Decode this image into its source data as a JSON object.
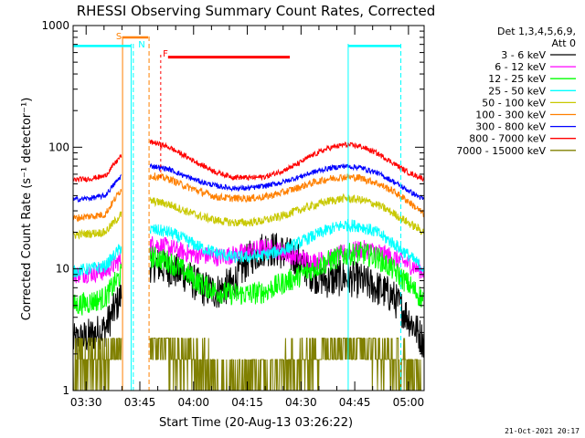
{
  "chart_data": {
    "type": "line",
    "title": "RHESSI Observing Summary Count Rates, Corrected",
    "xlabel": "Start Time (20-Aug-13 03:26:22)",
    "ylabel": "Corrected Count Rate (s⁻¹ detector⁻¹)",
    "yscale": "log",
    "ylim": [
      1,
      1000
    ],
    "xlim_minutes": [
      0,
      98
    ],
    "x_tick_labels": [
      "03:30",
      "03:45",
      "04:00",
      "04:15",
      "04:30",
      "04:45",
      "05:00"
    ],
    "x_tick_minutes": [
      3.63,
      18.63,
      33.63,
      48.63,
      63.63,
      78.63,
      93.63
    ],
    "y_tick_labels": [
      "1",
      "10",
      "100",
      "1000"
    ],
    "y_tick_values": [
      1,
      10,
      100,
      1000
    ],
    "legend_title": [
      "Det 1,3,4,5,6,9,",
      "Att 0"
    ],
    "series": [
      {
        "name": "3 - 6 keV",
        "color": "#000000",
        "values": [
          2.5,
          2.8,
          3.2,
          6,
          10,
          11,
          10,
          9,
          7,
          6.5,
          7.5,
          12,
          15,
          14,
          12,
          9,
          8,
          8.5,
          8,
          7,
          6,
          4,
          2.5
        ]
      },
      {
        "name": "6 - 12 keV",
        "color": "#ff00ff",
        "values": [
          9,
          9.2,
          9.5,
          12,
          15,
          16,
          15,
          13.5,
          13,
          12.5,
          13,
          14,
          15,
          14,
          12.5,
          11.5,
          12,
          13.5,
          14.5,
          14,
          12.5,
          11,
          9.5
        ]
      },
      {
        "name": "12 - 25 keV",
        "color": "#00ff00",
        "values": [
          5,
          5.3,
          5.8,
          9,
          11.5,
          12.5,
          11.5,
          9.5,
          7.5,
          6.5,
          6.2,
          6.2,
          6.5,
          7.5,
          8.5,
          10,
          11.5,
          13,
          13.5,
          12.5,
          10,
          7.5,
          5.5
        ]
      },
      {
        "name": "25 - 50 keV",
        "color": "#00ffff",
        "values": [
          9.5,
          10,
          10.5,
          15,
          19,
          21,
          20,
          17.5,
          15,
          13.5,
          12.5,
          12.5,
          13,
          14,
          16,
          18.5,
          21,
          23,
          22.5,
          20,
          16.5,
          13,
          10
        ]
      },
      {
        "name": "50 - 100 keV",
        "color": "#c8c800",
        "values": [
          19,
          19.5,
          20,
          28,
          34,
          36,
          34,
          30,
          27,
          25,
          24,
          24,
          25,
          27,
          30,
          33,
          36,
          38,
          37,
          34,
          29,
          24,
          20
        ]
      },
      {
        "name": "100 - 300 keV",
        "color": "#ff8000",
        "values": [
          26,
          27,
          28,
          45,
          54,
          58,
          55,
          48,
          43,
          39,
          38,
          38,
          39,
          42,
          46,
          51,
          55,
          57,
          56,
          51,
          44,
          36,
          28
        ]
      },
      {
        "name": "300 - 800 keV",
        "color": "#0000ff",
        "values": [
          37,
          38,
          40,
          58,
          66,
          70,
          66,
          58,
          52,
          48,
          46,
          46,
          48,
          51,
          56,
          62,
          67,
          70,
          68,
          62,
          53,
          44,
          37
        ]
      },
      {
        "name": "800 - 7000 keV",
        "color": "#ff0000",
        "values": [
          54,
          55,
          58,
          85,
          104,
          110,
          100,
          85,
          72,
          62,
          57,
          56,
          57,
          63,
          72,
          86,
          98,
          105,
          102,
          90,
          75,
          62,
          55
        ]
      },
      {
        "name": "7000 - 15000 keV",
        "color": "#808000",
        "values": [
          1.5,
          1.8,
          1.7,
          2.6,
          2.8,
          2.3,
          2.0,
          1.8,
          1.5,
          1.3,
          1.2,
          1.2,
          1.2,
          1.3,
          1.5,
          1.8,
          2.3,
          2.8,
          2.6,
          2.0,
          1.7,
          1.4,
          1.2
        ]
      }
    ],
    "data_segments": [
      [
        0,
        13.5
      ],
      [
        21.5,
        98
      ]
    ],
    "annotations": {
      "saa_label": "S",
      "night_label": "N",
      "flare_label": "F",
      "saa_band_minutes": [
        13.8,
        21.2
      ],
      "night_band_minutes": [
        16.8,
        21.2
      ],
      "flare_bar_minutes": [
        26.5,
        60.5
      ],
      "flare_bar_value": 550,
      "night_top_value": 680,
      "night_bars_minutes": [
        [
          0,
          16.2
        ],
        [
          76.8,
          91.5
        ]
      ]
    },
    "timestamp": "21-Oct-2021 20:17"
  },
  "colors": {
    "saa": "#ff8000",
    "night": "#00ffff",
    "flare": "#ff0000",
    "axes": "#000000"
  }
}
